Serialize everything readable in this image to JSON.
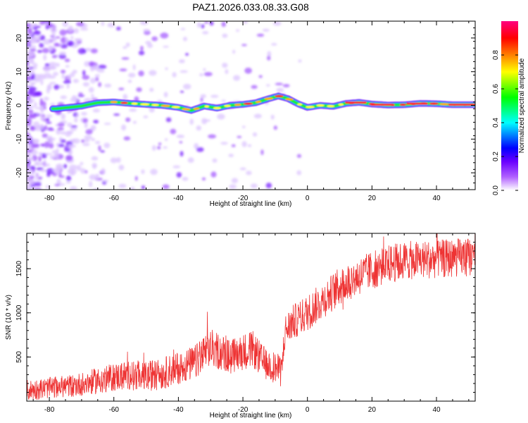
{
  "figure": {
    "title": "PAZ1.2026.033.08.33.G08"
  },
  "chart_data": [
    {
      "type": "heatmap",
      "title": "PAZ1.2026.033.08.33.G08",
      "xlabel": "Height of straight line (km)",
      "ylabel": "Frequency (Hz)",
      "xlim": [
        -87,
        52
      ],
      "ylim": [
        -25,
        25
      ],
      "xticks": [
        -80,
        -60,
        -40,
        -20,
        0,
        20,
        40
      ],
      "yticks": [
        -20,
        -10,
        0,
        10,
        20
      ],
      "colorbar": {
        "label": "Normalized spectral amplitude",
        "range": [
          0,
          1
        ],
        "ticks": [
          0.0,
          0.2,
          0.4,
          0.6,
          0.8
        ],
        "colormap": [
          "#ffffff",
          "#8f00ff",
          "#0000ff",
          "#00ffff",
          "#00ff00",
          "#ffff00",
          "#ff7f00",
          "#ff0000",
          "#ff0080"
        ]
      },
      "ridge": {
        "description": "main signal frequency vs height",
        "x": [
          -78,
          -70,
          -65,
          -60,
          -55,
          -50,
          -45,
          -40,
          -36,
          -32,
          -28,
          -24,
          -20,
          -16,
          -12,
          -9,
          -6,
          -3,
          0,
          4,
          8,
          12,
          16,
          20,
          25,
          30,
          35,
          40,
          45,
          52
        ],
        "y": [
          -1.0,
          -0.2,
          0.8,
          1.0,
          0.6,
          0.3,
          0.0,
          -0.6,
          -1.5,
          -0.2,
          -0.8,
          0.0,
          0.3,
          0.8,
          2.0,
          2.8,
          2.0,
          0.5,
          -0.6,
          0.0,
          -0.3,
          0.6,
          0.9,
          0.4,
          0.1,
          0.2,
          0.6,
          0.5,
          0.2,
          0.2
        ],
        "amplitude": [
          0.35,
          0.4,
          0.5,
          0.7,
          0.75,
          0.7,
          0.72,
          0.65,
          0.6,
          0.7,
          0.65,
          0.7,
          0.8,
          0.75,
          0.8,
          0.85,
          0.75,
          0.6,
          0.55,
          0.6,
          0.65,
          0.75,
          0.85,
          0.8,
          0.75,
          0.8,
          0.85,
          0.8,
          0.8,
          0.85
        ]
      }
    },
    {
      "type": "line",
      "xlabel": "Height of straight line (km)",
      "ylabel": "SNR (10 * v/v)",
      "xlim": [
        -87,
        52
      ],
      "ylim": [
        0,
        1900
      ],
      "xticks": [
        -80,
        -60,
        -40,
        -20,
        0,
        20,
        40
      ],
      "yticks": [
        500,
        1000,
        1500
      ],
      "series": [
        {
          "name": "SNR",
          "color": "#ee3333",
          "trend_x": [
            -87,
            -80,
            -72,
            -65,
            -60,
            -55,
            -50,
            -45,
            -40,
            -35,
            -30,
            -27,
            -24,
            -20,
            -17,
            -14,
            -10,
            -8,
            -7,
            -5,
            -2,
            0,
            5,
            10,
            15,
            20,
            25,
            30,
            35,
            40,
            45,
            52
          ],
          "trend_y": [
            120,
            150,
            180,
            230,
            270,
            300,
            280,
            310,
            380,
            430,
            600,
            560,
            500,
            560,
            590,
            450,
            380,
            330,
            780,
            880,
            950,
            1000,
            1150,
            1300,
            1400,
            1480,
            1550,
            1590,
            1600,
            1610,
            1620,
            1640
          ],
          "noise_amplitude": [
            120,
            120,
            130,
            150,
            160,
            170,
            170,
            180,
            190,
            200,
            220,
            210,
            200,
            210,
            210,
            190,
            180,
            180,
            200,
            200,
            200,
            210,
            210,
            220,
            220,
            220,
            220,
            220,
            220,
            220,
            220,
            220
          ]
        }
      ]
    }
  ]
}
